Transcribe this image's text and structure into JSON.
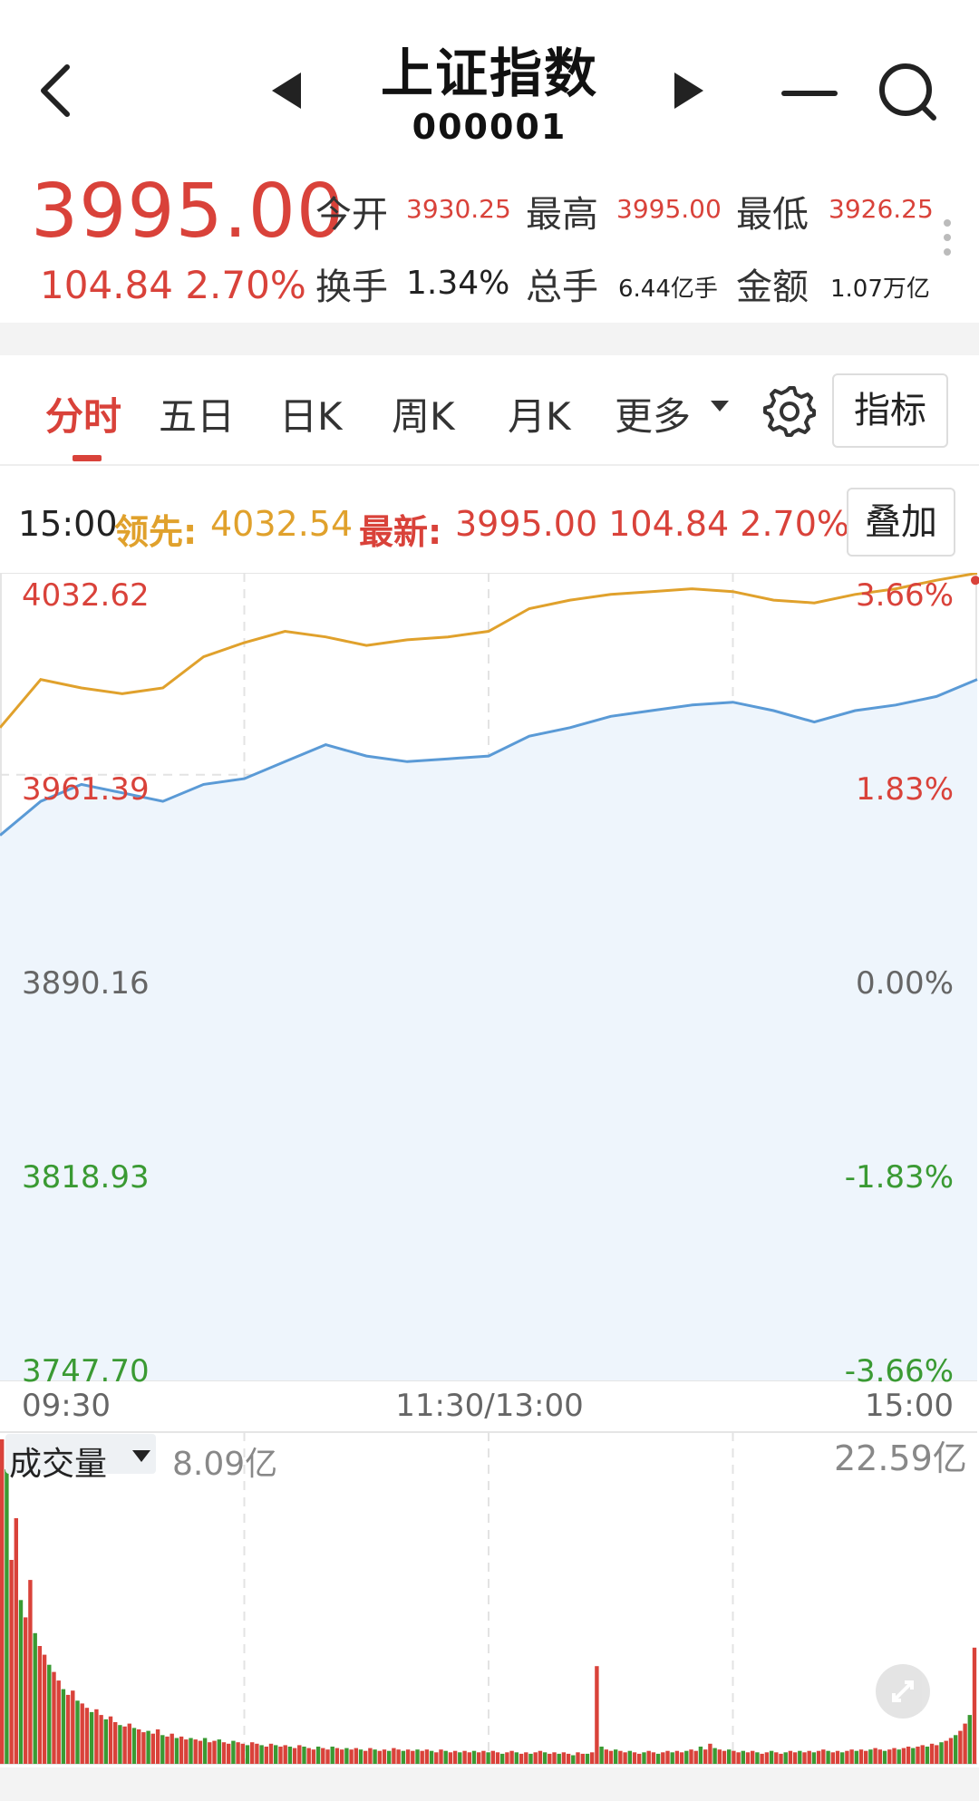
{
  "header": {
    "title": "上证指数",
    "code": "000001"
  },
  "quote": {
    "price": "3995.00",
    "change": "104.84",
    "change_pct": "2.70%",
    "open_label": "今开",
    "open": "3930.25",
    "high_label": "最高",
    "high": "3995.00",
    "low_label": "最低",
    "low": "3926.25",
    "turnover_rate_label": "换手",
    "turnover_rate": "1.34%",
    "volume_label": "总手",
    "volume": "6.44亿手",
    "amount_label": "金额",
    "amount": "1.07万亿"
  },
  "tabs": [
    {
      "label": "分时",
      "active": true
    },
    {
      "label": "五日"
    },
    {
      "label": "日K"
    },
    {
      "label": "周K"
    },
    {
      "label": "月K"
    },
    {
      "label": "更多"
    }
  ],
  "indicator_button": "指标",
  "info_line": {
    "time": "15:00",
    "lead_label": "领先:",
    "lead_value": "4032.54",
    "latest_label": "最新:",
    "latest_value": "3995.00 104.84 2.70%",
    "overlay_button": "叠加"
  },
  "colors": {
    "up": "#d9423a",
    "down": "#3a9a33",
    "lead_line": "#e0a12c",
    "price_line": "#5a9ad6",
    "area_fill": "#eef5fc"
  },
  "chart_data": {
    "type": "line",
    "title": "",
    "xlabel": "",
    "ylabel": "",
    "x_ticks": [
      "09:30",
      "11:30/13:00",
      "15:00"
    ],
    "y_left_ticks": [
      "4032.62",
      "3961.39",
      "3890.16",
      "3818.93",
      "3747.70"
    ],
    "y_right_ticks": [
      "3.66%",
      "1.83%",
      "0.00%",
      "-1.83%",
      "-3.66%"
    ],
    "ylim": [
      3747.7,
      4032.62
    ],
    "prev_close": 3890.16,
    "x": [
      0,
      10,
      20,
      30,
      40,
      50,
      60,
      70,
      80,
      90,
      100,
      110,
      120,
      130,
      140,
      150,
      160,
      170,
      180,
      190,
      200,
      210,
      220,
      230,
      240
    ],
    "series": [
      {
        "values": [
          3940,
          3952,
          3958,
          3955,
          3952,
          3958,
          3960,
          3966,
          3972,
          3968,
          3966,
          3967,
          3968,
          3975,
          3978,
          3982,
          3984,
          3986,
          3987,
          3984,
          3980,
          3984,
          3986,
          3989,
          3995
        ]
      },
      {
        "values": [
          3978,
          3995,
          3992,
          3990,
          3992,
          4003,
          4008,
          4012,
          4010,
          4007,
          4009,
          4010,
          4012,
          4020,
          4023,
          4025,
          4026,
          4027,
          4026,
          4023,
          4022,
          4025,
          4027,
          4030,
          4032.54
        ]
      }
    ],
    "volume": {
      "max_label": "22.59亿",
      "current_label": "8.09亿",
      "selector_label": "成交量",
      "values": [
        22.59,
        20.5,
        14.2,
        17.1,
        11.4,
        10.2,
        12.8,
        9.1,
        8.2,
        7.6,
        6.9,
        6.4,
        5.8,
        5.2,
        4.8,
        5.1,
        4.4,
        4.2,
        3.9,
        3.6,
        3.8,
        3.4,
        3.1,
        3.3,
        2.9,
        2.7,
        2.6,
        2.8,
        2.5,
        2.4,
        2.2,
        2.3,
        2.1,
        2.4,
        2.0,
        1.9,
        2.1,
        1.8,
        1.9,
        1.7,
        1.8,
        1.7,
        1.6,
        1.8,
        1.5,
        1.6,
        1.7,
        1.5,
        1.4,
        1.6,
        1.5,
        1.4,
        1.3,
        1.5,
        1.4,
        1.3,
        1.2,
        1.4,
        1.3,
        1.2,
        1.3,
        1.2,
        1.1,
        1.3,
        1.2,
        1.1,
        1.0,
        1.2,
        1.1,
        1.0,
        1.2,
        1.1,
        1.0,
        1.1,
        1.0,
        1.1,
        1.0,
        0.9,
        1.1,
        1.0,
        0.9,
        1.0,
        0.9,
        1.1,
        1.0,
        0.9,
        1.0,
        0.9,
        1.0,
        0.9,
        1.0,
        0.9,
        0.8,
        1.0,
        0.9,
        0.8,
        0.9,
        0.8,
        0.9,
        0.8,
        0.9,
        0.8,
        0.9,
        0.8,
        0.9,
        0.8,
        0.7,
        0.8,
        0.9,
        0.8,
        0.7,
        0.8,
        0.7,
        0.8,
        0.9,
        0.8,
        0.7,
        0.8,
        0.7,
        0.8,
        0.7,
        0.6,
        0.8,
        0.7,
        0.7,
        0.8,
        6.8,
        1.2,
        1.0,
        0.9,
        1.0,
        0.9,
        0.8,
        0.9,
        0.8,
        0.7,
        0.8,
        0.9,
        0.8,
        0.7,
        0.8,
        0.9,
        0.8,
        0.9,
        0.8,
        0.9,
        1.0,
        0.9,
        1.2,
        1.0,
        1.4,
        1.1,
        1.0,
        0.9,
        1.0,
        0.9,
        0.8,
        0.9,
        0.8,
        0.9,
        0.8,
        0.7,
        0.8,
        0.9,
        0.8,
        0.7,
        0.8,
        0.9,
        0.8,
        0.9,
        0.8,
        0.9,
        0.8,
        0.9,
        1.0,
        0.9,
        0.8,
        0.9,
        0.8,
        0.9,
        1.0,
        0.9,
        1.0,
        0.9,
        1.0,
        1.1,
        1.0,
        0.9,
        1.0,
        1.1,
        1.0,
        1.1,
        1.2,
        1.1,
        1.2,
        1.3,
        1.2,
        1.4,
        1.3,
        1.5,
        1.6,
        1.8,
        2.0,
        2.3,
        2.8,
        3.4,
        8.09
      ],
      "colors": "red-green alternating by tick"
    }
  }
}
